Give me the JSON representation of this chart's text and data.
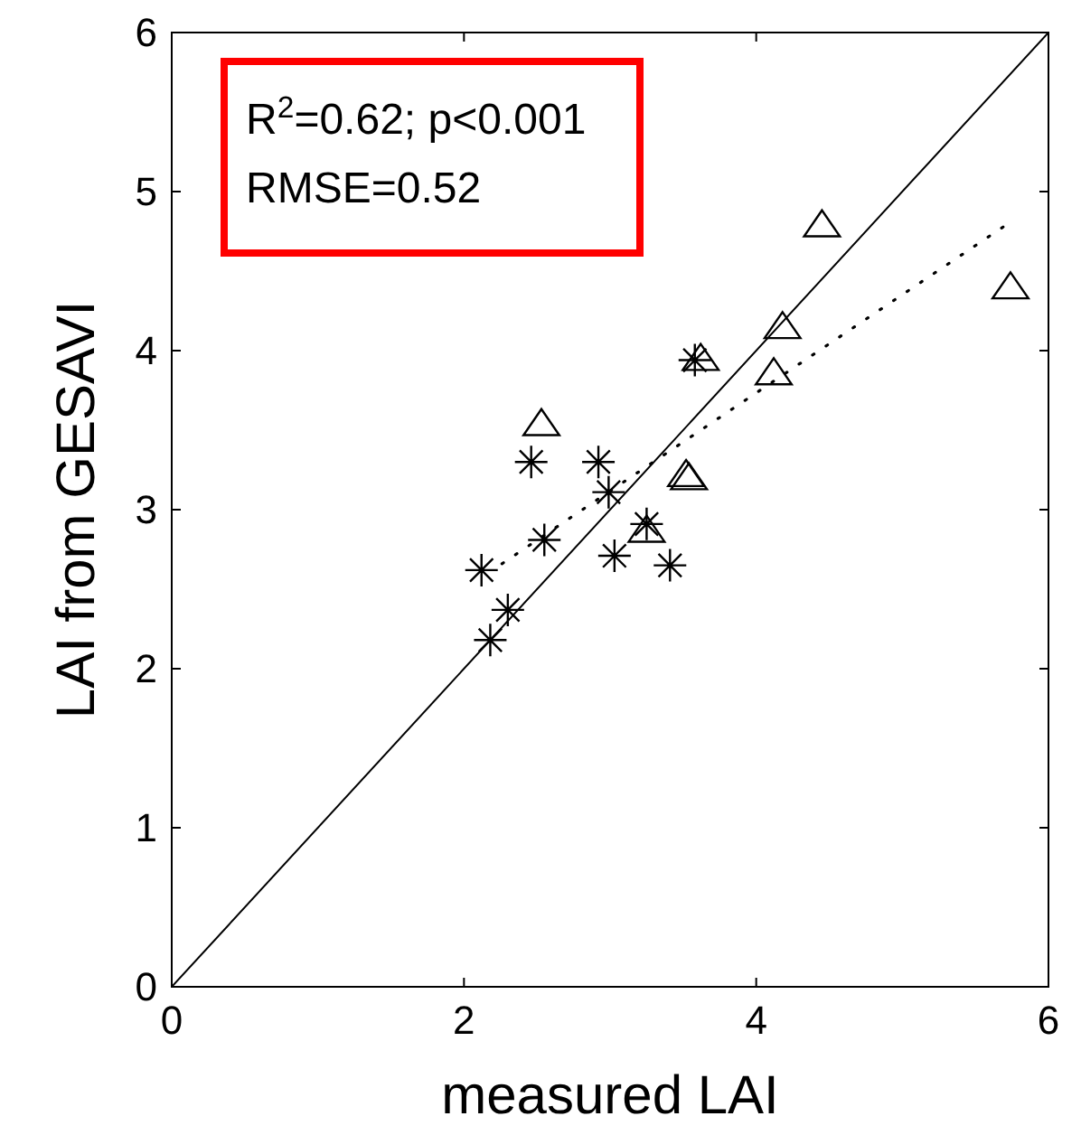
{
  "chart_data": {
    "type": "scatter",
    "xlabel": "measured LAI",
    "ylabel": "LAI from GESAVI",
    "xlim": [
      0,
      6
    ],
    "ylim": [
      0,
      6
    ],
    "xticks": [
      0,
      2,
      4,
      6
    ],
    "yticks": [
      0,
      1,
      2,
      3,
      4,
      5,
      6
    ],
    "grid": false,
    "annotations": [
      "R$^{2}$=0.62; p<0.001",
      "RMSE=0.52"
    ],
    "series": [
      {
        "marker": "cross",
        "color": "#000000",
        "x": [
          2.12,
          2.18,
          2.3,
          2.46,
          2.55,
          2.92,
          2.99,
          3.03,
          3.25,
          3.41,
          3.58
        ],
        "values": [
          2.62,
          2.18,
          2.37,
          3.3,
          2.81,
          3.3,
          3.11,
          2.71,
          2.91,
          2.65,
          3.94
        ]
      },
      {
        "marker": "triangle",
        "color": "#000000",
        "x": [
          2.53,
          3.25,
          3.52,
          3.54,
          3.62,
          4.12,
          4.18,
          4.45,
          5.74
        ],
        "values": [
          3.53,
          2.86,
          3.21,
          3.19,
          3.94,
          3.85,
          4.14,
          4.78,
          4.39
        ]
      },
      {
        "type": "line",
        "line_style": "solid",
        "color": "#000000",
        "x": [
          0,
          6
        ],
        "values": [
          0,
          6
        ]
      },
      {
        "type": "line",
        "line_style": "dotted",
        "color": "#000000",
        "x": [
          2.26,
          5.71
        ],
        "values": [
          2.66,
          4.79
        ]
      }
    ]
  }
}
